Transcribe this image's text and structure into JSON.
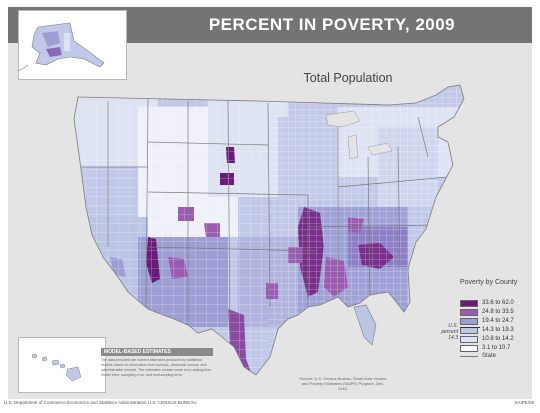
{
  "header": {
    "title": "PERCENT IN POVERTY, 2009"
  },
  "map": {
    "subtitle": "Total Population",
    "insets": [
      "Alaska",
      "Hawaii"
    ],
    "colors": {
      "background": "#e4e4e4",
      "header": "#747474",
      "county_border": "#ffffff",
      "state_border": "#777777"
    }
  },
  "legend": {
    "title": "Poverty by County",
    "classes": [
      {
        "label": "33.6 to 62.0",
        "color": "#6b1a78"
      },
      {
        "label": "24.8 to 33.5",
        "color": "#9a5cb0"
      },
      {
        "label": "19.4 to 24.7",
        "color": "#9d9fd4"
      },
      {
        "label": "14.3 to 19.3",
        "color": "#bdc5e5"
      },
      {
        "label": "10.8 to 14.2",
        "color": "#dde3f2"
      },
      {
        "label": "3.1 to 10.7",
        "color": "#f6f8fc"
      }
    ],
    "us_percent_label": "U.S. percent 14.3",
    "state_label": "State"
  },
  "model_note": {
    "heading": "MODEL-BASED ESTIMATES",
    "body": "The data provided are indirect estimates produced by statistical models based on information from surveys, decennial census, and administrative records. The estimates contain some error arising from model error, sampling error, and nonsampling error."
  },
  "source_note": "Source: U.S. Census Bureau, Small Area Income and Poverty Estimates (SAIPE) Program, Dec. 2010.",
  "footer": {
    "left": "U.S. Department of Commerce Economics and Statistics Administration U.S. CENSUS BUREAU",
    "right": "SAIPE/09"
  }
}
